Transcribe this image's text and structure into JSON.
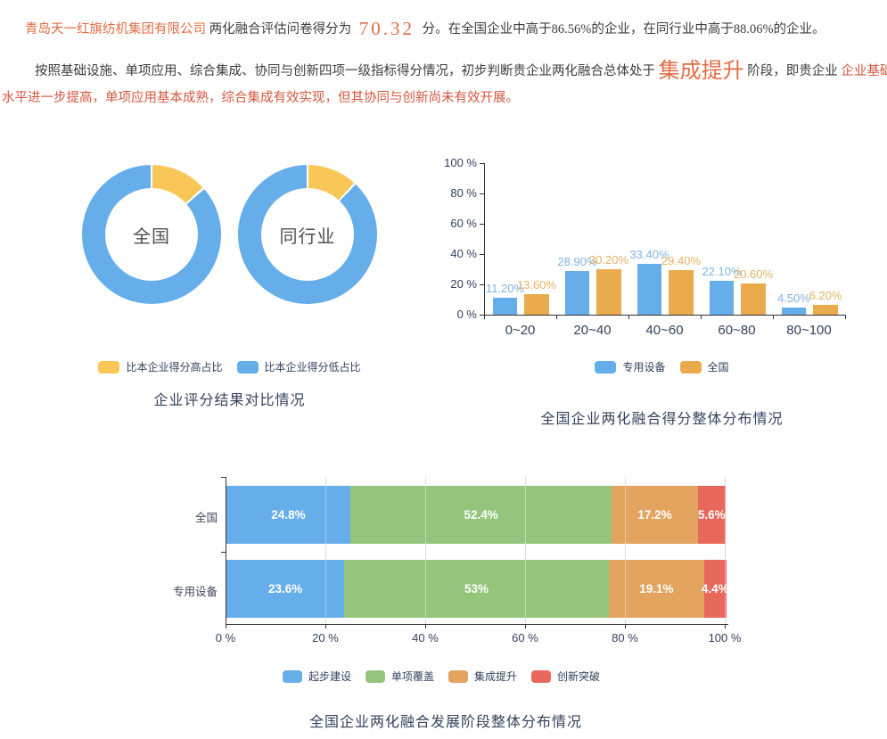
{
  "page": {
    "p1": {
      "company": "青岛天一红旗纺机集团有限公司",
      "mid": "两化融合评估问卷得分为",
      "score": "70.32",
      "tail": "分。在全国企业中高于86.56%的企业，在同行业中高于88.06%的企业。"
    },
    "p2": {
      "lead": "按照基础设施、单项应用、综合集成、协同与创新四项一级指标得分情况，初步判断贵企业两化融合总体处于",
      "stage": "集成提升",
      "mid2": "阶段，即贵企业",
      "hl": "企业基础建设",
      "line2": "水平进一步提高，单项应用基本成熟，综合集成有效实现，但其协同与创新尚未有效开展。"
    }
  },
  "colors": {
    "accent_orange": "#e36c44",
    "highlight_red": "#d4573f",
    "blue": "#66aee9",
    "yellow": "#f9c758",
    "bar_orange": "#e9ab4c",
    "green": "#95c57d",
    "stack_orange": "#e2a45f",
    "red": "#e8685c",
    "label_blue": "#7fb3e2",
    "label_orange": "#e7b265",
    "axis_text": "#33425c"
  },
  "chart_data": [
    {
      "type": "pie",
      "title": "企业评分结果对比情况",
      "legend": [
        {
          "label": "比本企业得分高占比",
          "color": "#f9c758"
        },
        {
          "label": "比本企业得分低占比",
          "color": "#66aee9"
        }
      ],
      "donuts": [
        {
          "label": "全国",
          "high_pct": 13.44,
          "low_pct": 86.56
        },
        {
          "label": "同行业",
          "high_pct": 11.94,
          "low_pct": 88.06
        }
      ]
    },
    {
      "type": "bar",
      "title": "全国企业两化融合得分整体分布情况",
      "categories": [
        "0~20",
        "20~40",
        "40~60",
        "60~80",
        "80~100"
      ],
      "series": [
        {
          "name": "专用设备",
          "color": "#66aee9",
          "label_color": "#7fb3e2",
          "values": [
            11.2,
            28.9,
            33.4,
            22.1,
            4.5
          ],
          "labels": [
            "11.20%",
            "28.90%",
            "33.40%",
            "22.10%",
            "4.50%"
          ]
        },
        {
          "name": "全国",
          "color": "#e9ab4c",
          "label_color": "#e7b265",
          "values": [
            13.6,
            30.2,
            29.4,
            20.6,
            6.2
          ],
          "labels": [
            "13.60%",
            "30.20%",
            "29.40%",
            "20.60%",
            "6.20%"
          ]
        }
      ],
      "yticks": [
        "100 %",
        "80 %",
        "60 %",
        "40 %",
        "20 %",
        "0 %"
      ],
      "ylim": [
        0,
        100
      ],
      "grid": false,
      "legend_position": "bottom"
    },
    {
      "type": "stacked_bar_h",
      "title": "全国企业两化融合发展阶段整体分布情况",
      "rows": [
        {
          "label": "全国",
          "values": [
            24.8,
            52.4,
            17.2,
            5.6
          ],
          "labels": [
            "24.8%",
            "52.4%",
            "17.2%",
            "5.6%"
          ]
        },
        {
          "label": "专用设备",
          "values": [
            23.6,
            53,
            19.1,
            4.4
          ],
          "labels": [
            "23.6%",
            "53%",
            "19.1%",
            "4.4%"
          ]
        }
      ],
      "segments": [
        {
          "name": "起步建设",
          "color": "#66aee9"
        },
        {
          "name": "单项覆盖",
          "color": "#95c57d"
        },
        {
          "name": "集成提升",
          "color": "#e2a45f"
        },
        {
          "name": "创新突破",
          "color": "#e8685c"
        }
      ],
      "xticks": [
        "0 %",
        "20 %",
        "40 %",
        "60 %",
        "80 %",
        "100 %"
      ],
      "xlim": [
        0,
        100
      ],
      "grid": true,
      "legend_position": "bottom"
    }
  ]
}
